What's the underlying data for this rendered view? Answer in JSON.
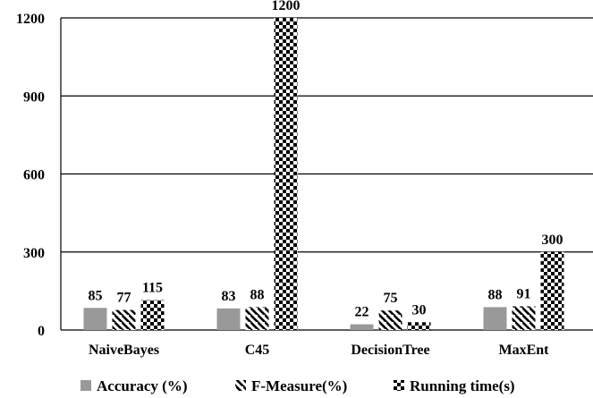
{
  "chart_data": {
    "type": "bar",
    "categories": [
      "NaiveBayes",
      "C45",
      "DecisionTree",
      "MaxEnt"
    ],
    "series": [
      {
        "name": "Accuracy (%)",
        "values": [
          85,
          83,
          22,
          88
        ],
        "pattern": "solid",
        "color": "#999999"
      },
      {
        "name": "F-Measure(%)",
        "values": [
          77,
          88,
          75,
          91
        ],
        "pattern": "diagonal",
        "color": "#000000"
      },
      {
        "name": "Running time(s)",
        "values": [
          115,
          1200,
          30,
          300
        ],
        "pattern": "checker",
        "color": "#000000"
      }
    ],
    "data_labels": [
      [
        "85",
        "77",
        "115"
      ],
      [
        "83",
        "88",
        "1200"
      ],
      [
        "22",
        "75",
        "30"
      ],
      [
        "88",
        "91",
        "300"
      ]
    ],
    "yticks": [
      "0",
      "300",
      "600",
      "900",
      "1200"
    ],
    "ylim": [
      0,
      1200
    ],
    "grid": true,
    "legend_position": "bottom",
    "title": "",
    "xlabel": "",
    "ylabel": ""
  }
}
